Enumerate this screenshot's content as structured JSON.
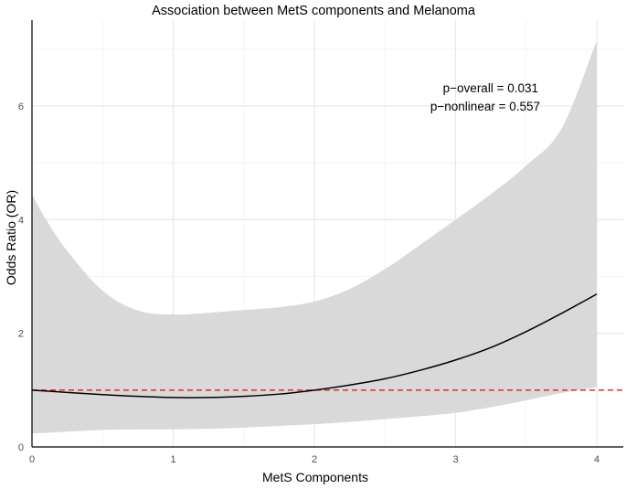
{
  "chart_data": {
    "type": "line",
    "title": "Association between MetS components and Melanoma",
    "xlabel": "MetS Components",
    "ylabel": "Odds Ratio (OR)",
    "xlim": [
      0,
      4.2
    ],
    "ylim": [
      0,
      7.5
    ],
    "x_ticks": [
      0,
      1,
      2,
      3,
      4
    ],
    "y_ticks": [
      0,
      2,
      4,
      6
    ],
    "grid": true,
    "annotations": [
      "p−overall = 0.031",
      "p−nonlinear = 0.557"
    ],
    "reference_line": {
      "y": 1,
      "style": "dashed",
      "color": "#e41a1c"
    },
    "series": [
      {
        "kind": "line",
        "color": "#000000",
        "x": [
          0,
          0.25,
          0.5,
          0.75,
          1.0,
          1.25,
          1.5,
          1.75,
          2.0,
          2.25,
          2.5,
          2.75,
          3.0,
          3.25,
          3.5,
          3.75,
          4.0
        ],
        "y": [
          1.0,
          0.96,
          0.92,
          0.89,
          0.87,
          0.87,
          0.89,
          0.93,
          1.0,
          1.09,
          1.2,
          1.35,
          1.53,
          1.75,
          2.03,
          2.35,
          2.69
        ]
      },
      {
        "kind": "confidence_band",
        "color": "#d9d9d9",
        "x": [
          0,
          0.1,
          0.25,
          0.5,
          0.75,
          1.0,
          1.25,
          1.5,
          1.75,
          2.0,
          2.25,
          2.5,
          2.75,
          3.0,
          3.25,
          3.5,
          3.75,
          4.0
        ],
        "upper": [
          4.45,
          4.0,
          3.45,
          2.75,
          2.4,
          2.33,
          2.36,
          2.41,
          2.46,
          2.56,
          2.78,
          3.13,
          3.56,
          4.0,
          4.45,
          4.95,
          5.6,
          7.15
        ],
        "lower": [
          0.24,
          0.25,
          0.27,
          0.3,
          0.31,
          0.31,
          0.32,
          0.34,
          0.37,
          0.4,
          0.44,
          0.49,
          0.54,
          0.6,
          0.7,
          0.82,
          0.95,
          1.05
        ]
      }
    ]
  }
}
